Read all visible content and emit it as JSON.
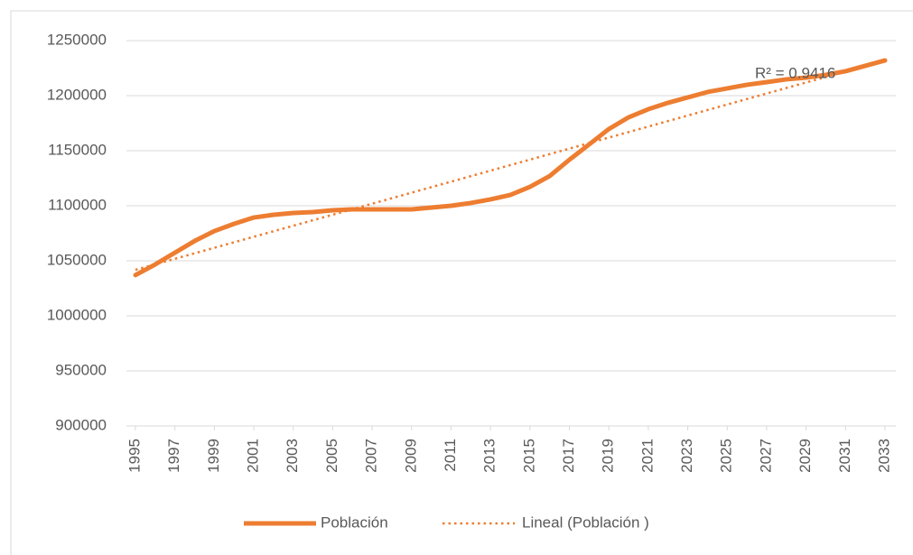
{
  "chart_data": {
    "type": "line",
    "x": [
      1995,
      1996,
      1997,
      1998,
      1999,
      2000,
      2001,
      2002,
      2003,
      2004,
      2005,
      2006,
      2007,
      2008,
      2009,
      2010,
      2011,
      2012,
      2013,
      2014,
      2015,
      2016,
      2017,
      2018,
      2019,
      2020,
      2021,
      2022,
      2023,
      2024,
      2025,
      2026,
      2027,
      2028,
      2029,
      2030,
      2031,
      2032,
      2033
    ],
    "series": [
      {
        "name": "Población",
        "color": "#ed7d31",
        "style": "solid",
        "values": [
          1037000,
          1046700,
          1057400,
          1068000,
          1077000,
          1083600,
          1089300,
          1091800,
          1093400,
          1094300,
          1095900,
          1096700,
          1096700,
          1096700,
          1096700,
          1098400,
          1100000,
          1102500,
          1105800,
          1109800,
          1117200,
          1127000,
          1141800,
          1155700,
          1169700,
          1180300,
          1187700,
          1193500,
          1198400,
          1203300,
          1206600,
          1209900,
          1212300,
          1214800,
          1216400,
          1218900,
          1222200,
          1227100,
          1232000
        ]
      },
      {
        "name": "Lineal (Población )",
        "color": "#ed7d31",
        "style": "dotted",
        "x": [
          1995,
          2033
        ],
        "values": [
          1041800,
          1232000
        ]
      }
    ],
    "annotations": [
      "R² = 0.9416"
    ],
    "xlim": [
      1995,
      2033
    ],
    "xticks": [
      1995,
      1997,
      1999,
      2001,
      2003,
      2005,
      2007,
      2009,
      2011,
      2013,
      2015,
      2017,
      2019,
      2021,
      2023,
      2025,
      2027,
      2029,
      2031,
      2033
    ],
    "ylim": [
      900000,
      1250000
    ],
    "yticks": [
      900000,
      950000,
      1000000,
      1050000,
      1100000,
      1150000,
      1200000,
      1250000
    ],
    "grid": true,
    "legend": "bottom"
  }
}
